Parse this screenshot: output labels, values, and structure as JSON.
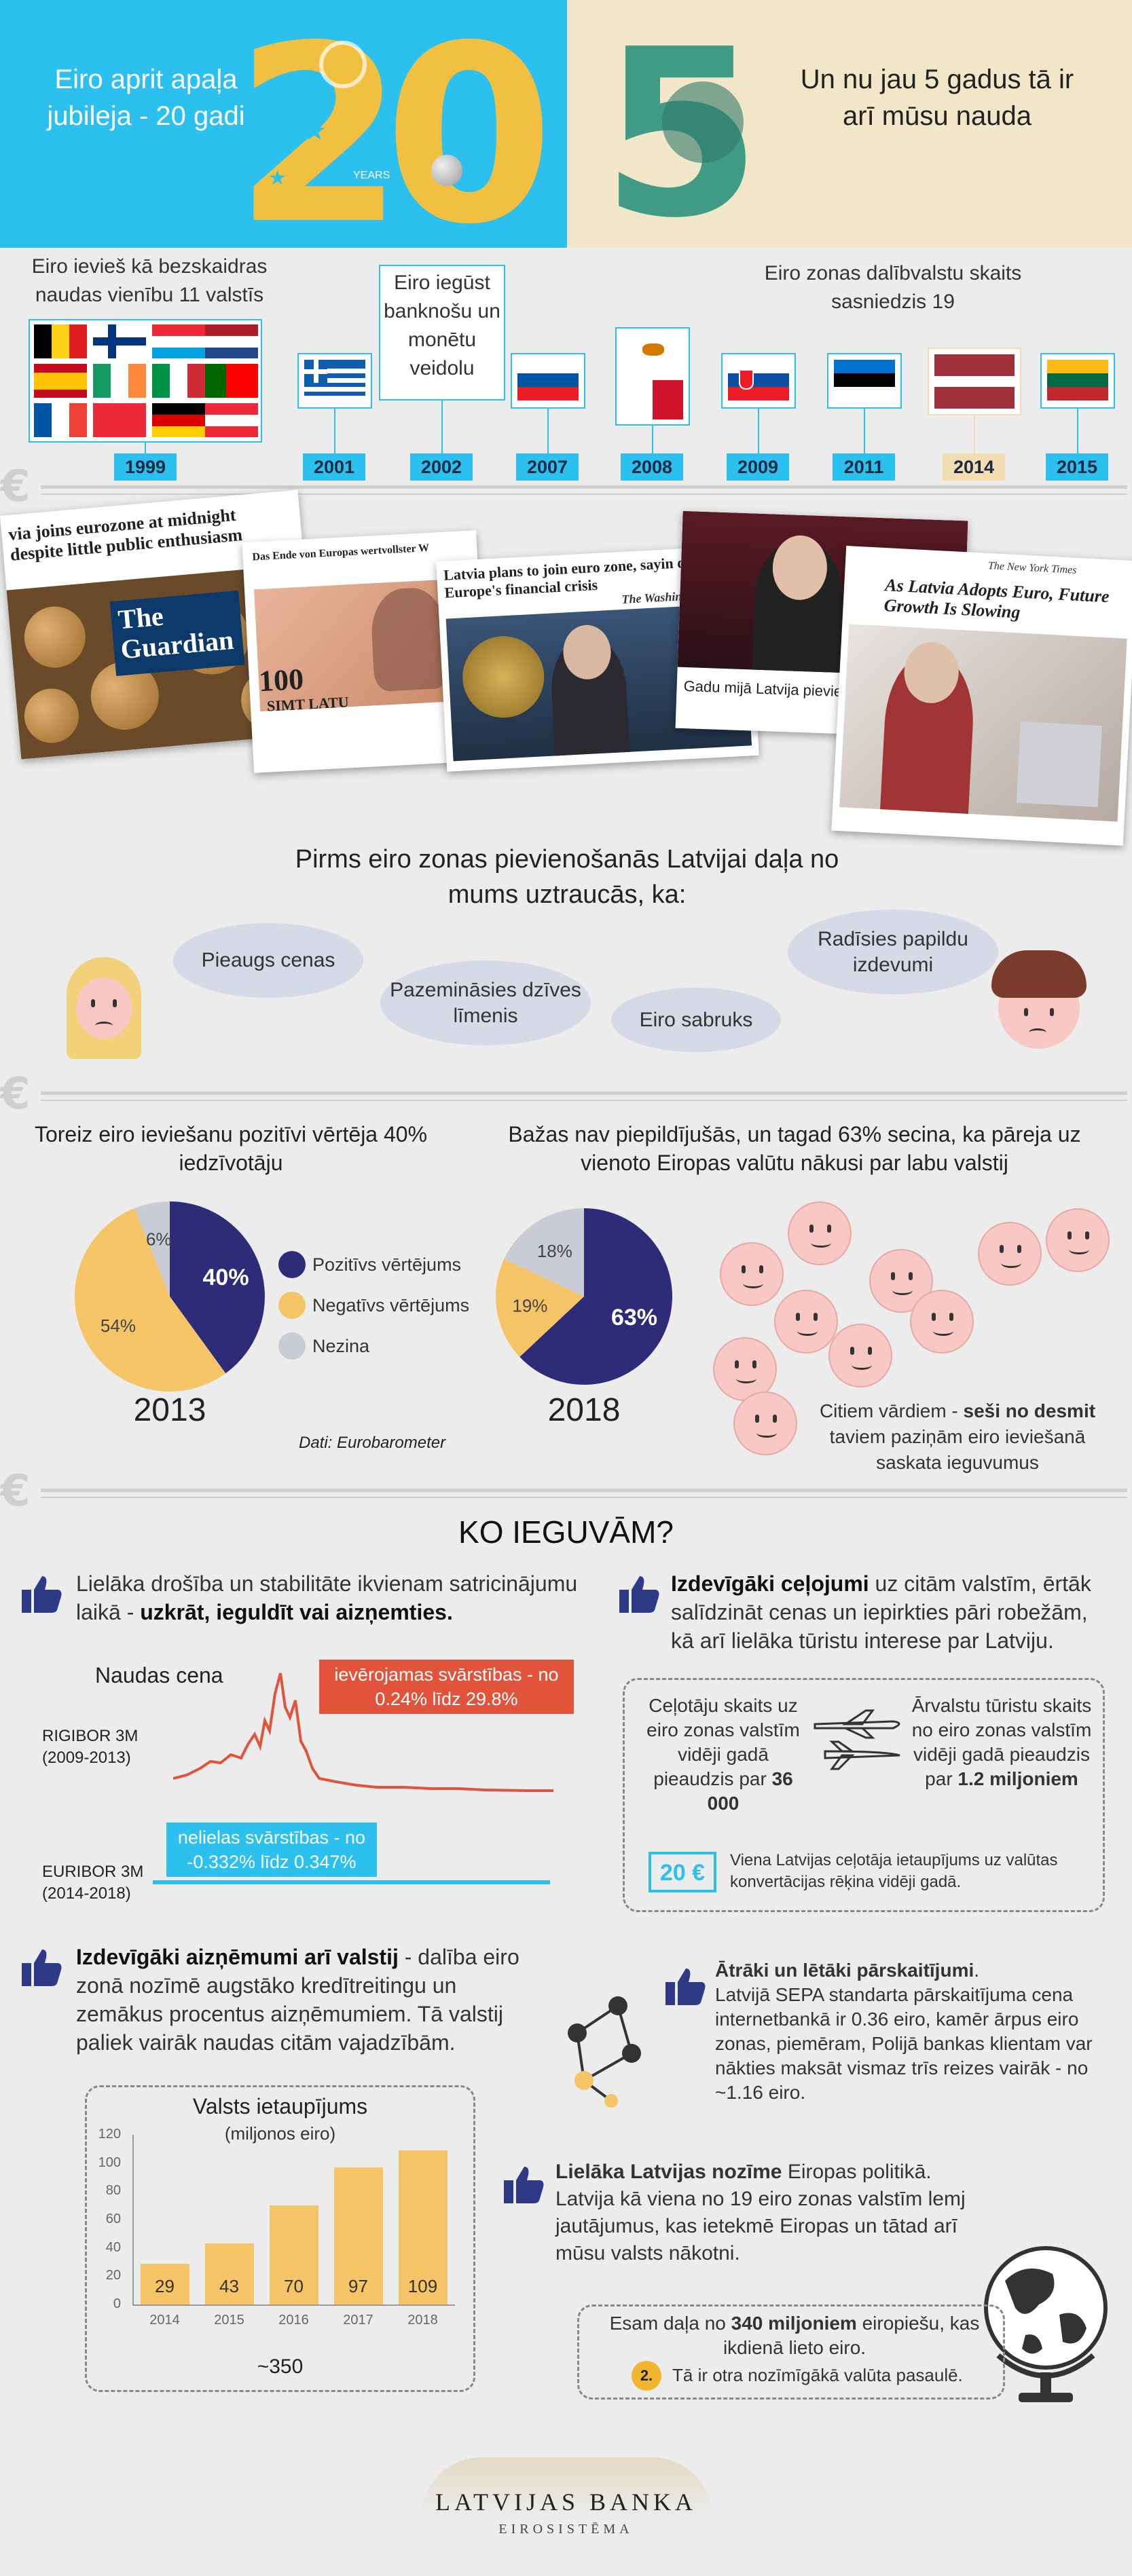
{
  "header": {
    "left_caption": "Eiro aprit apaļa jubileja - 20 gadi",
    "big_left": "20",
    "years_small": "YEARS",
    "big_right": "5",
    "right_caption": "Un nu jau 5 gadus tā ir arī mūsu nauda"
  },
  "timeline": {
    "caption_1999": "Eiro ievieš kā bezskaidras naudas vienību 11 valstīs",
    "caption_2002": "Eiro iegūst banknošu un monētu veidolu",
    "caption_2015": "Eiro zonas dalībvalstu skaits sasniedzis 19",
    "years": [
      "1999",
      "2001",
      "2002",
      "2007",
      "2008",
      "2009",
      "2011",
      "2014",
      "2015"
    ]
  },
  "news": {
    "guardian_headline": "via joins eurozone at midnight despite little public enthusiasm",
    "guardian_logo_1": "The",
    "guardian_logo_2": "Guardian",
    "german_headline": "Das Ende von Europas wertvollster W",
    "lats_note": "100",
    "lats_word": "SIMT LATU",
    "wapo_headline": "Latvia plans to join euro zone, sayin despite Europe's financial crisis",
    "wapo_logo": "The Washin",
    "tv_caption": "Gadu mijā Latvija pievienosies eiroz",
    "nyt_logo": "The New York Times",
    "nyt_headline": "As Latvia Adopts Euro, Future Growth Is Slowing"
  },
  "worries": {
    "title": "Pirms eiro zonas pievienošanās Latvijai daļa no mums uztraucās, ka:",
    "bubbles": [
      "Pieaugs cenas",
      "Pazemināsies dzīves līmenis",
      "Eiro sabruks",
      "Radīsies papildu izdevumi"
    ]
  },
  "survey": {
    "left_title": "Toreiz eiro ieviešanu pozitīvi vērtēja 40% iedzīvotāju",
    "right_title": "Bažas nav piepildījušās, un tagad 63% secina, ka pāreja uz vienoto Eiropas valūtu nākusi par labu valstij",
    "legend": [
      "Pozitīvs vērtējums",
      "Negatīvs vērtējums",
      "Nezina"
    ],
    "colors": [
      "#2e2c79",
      "#f5c466",
      "#c9ccd4"
    ],
    "source": "Dati: Eurobarometer",
    "six_of_ten_1": "Citiem vārdiem - ",
    "six_of_ten_bold": "seši no desmit",
    "six_of_ten_2": "taviem paziņām eiro ieviešanā saskata ieguvumus"
  },
  "chart_data": [
    {
      "type": "pie",
      "title": "2013",
      "labels": [
        "Pozitīvs vērtējums",
        "Negatīvs vērtējums",
        "Nezina"
      ],
      "values": [
        40,
        54,
        6
      ],
      "display": [
        "40%",
        "54%",
        "6%"
      ]
    },
    {
      "type": "pie",
      "title": "2018",
      "labels": [
        "Pozitīvs vērtējums",
        "Negatīvs vērtējums",
        "Nezina"
      ],
      "values": [
        63,
        19,
        18
      ],
      "display": [
        "63%",
        "19%",
        "18%"
      ]
    },
    {
      "type": "bar",
      "title": "Valsts ietaupījums",
      "subtitle": "(miljonos eiro)",
      "categories": [
        "2014",
        "2015",
        "2016",
        "2017",
        "2018"
      ],
      "values": [
        29,
        43,
        70,
        97,
        109
      ],
      "ylim": [
        0,
        120
      ],
      "yticks": [
        "0",
        "10",
        "20",
        "30",
        "40",
        "50",
        "60",
        "70",
        "80",
        "90",
        "100",
        "110",
        "120"
      ],
      "total": "~350"
    }
  ],
  "gains": {
    "title": "KO IEGUVĀM?",
    "security_text": "Lielāka drošība un stabilitāte ikvienam satricinājumu laikā - ",
    "security_bold": "uzkrāt, ieguldīt vai aizņemties.",
    "money_price_title": "Naudas cena",
    "rigibor_label": "RIGIBOR 3M",
    "rigibor_years": "(2009-2013)",
    "rigibor_callout_1": "ievērojamas svārstības - no",
    "rigibor_callout_2": "0.24% līdz 29.8%",
    "euribor_label": "EURIBOR 3M",
    "euribor_years": "(2014-2018)",
    "euribor_callout_1": "nelielas svārstības - no",
    "euribor_callout_2": "-0.332% līdz 0.347%",
    "travel_bold": "Izdevīgāki ceļojumi",
    "travel_text": " uz citām valstīm, ērtāk salīdzināt cenas un iepirkties pāri robežām, kā arī lielāka tūristu interese par Latviju.",
    "travelers_1": "Ceļotāju skaits uz eiro zonas valstīm vidēji gadā pieaudzis par ",
    "travelers_bold": "36 000",
    "tourists_1": "Ārvalstu tūristu skaits no eiro zonas valstīm vidēji gadā pieaudzis par ",
    "tourists_bold": "1.2 miljoniem",
    "savings_badge": "20 €",
    "savings_text": "Viena Latvijas ceļotāja ietaupījums uz valūtas konvertācijas rēķina vidēji gadā.",
    "loans_bold": "Izdevīgāki aizņēmumi arī valstij",
    "loans_text": " - dalība eiro zonā nozīmē augstāko kredītreitingu un zemākus procentus aizņēmumiem. Tā valstij paliek vairāk naudas citām vajadzībām.",
    "transfers_bold": "Ātrāki un lētāki pārskaitījumi",
    "transfers_text": "Latvijā SEPA standarta pārskaitījuma cena internetbankā ir 0.36 eiro, kamēr ārpus eiro zonas, piemēram, Polijā bankas klientam var nākties maksāt vismaz trīs reizes vairāk - no ~1.16 eiro.",
    "role_bold": "Lielāka Latvijas nozīme",
    "role_text": " Eiropas politikā. Latvija kā viena no 19 eiro zonas valstīm lemj jautājumus, kas ietekmē Eiropas un tātad arī mūsu valsts nākotni.",
    "users_1": "Esam  daļa no ",
    "users_bold": "340 miljoniem",
    "users_2": " eiropiešu, kas ikdienā lieto eiro.",
    "rank_badge": "2.",
    "rank_text": "Tā ir otra nozīmīgākā valūta pasaulē."
  },
  "footer": {
    "bank": "LATVIJAS BANKA",
    "system": "EIROSISTĒMA"
  }
}
